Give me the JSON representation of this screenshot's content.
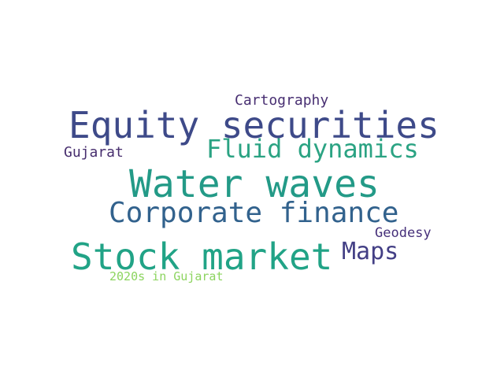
{
  "words": [
    {
      "text": "Water waves",
      "color": "#239a87"
    },
    {
      "text": "Equity securities",
      "color": "#3e4a89"
    },
    {
      "text": "Stock market",
      "color": "#21a386"
    },
    {
      "text": "Corporate finance",
      "color": "#32628d"
    },
    {
      "text": "Fluid dynamics",
      "color": "#2ba383"
    },
    {
      "text": "Maps",
      "color": "#433f85"
    },
    {
      "text": "Cartography",
      "color": "#482f72"
    },
    {
      "text": "Gujarat",
      "color": "#472e6e"
    },
    {
      "text": "Geodesy",
      "color": "#46307a"
    },
    {
      "text": "2020s in Gujarat",
      "color": "#8cd45f"
    }
  ]
}
